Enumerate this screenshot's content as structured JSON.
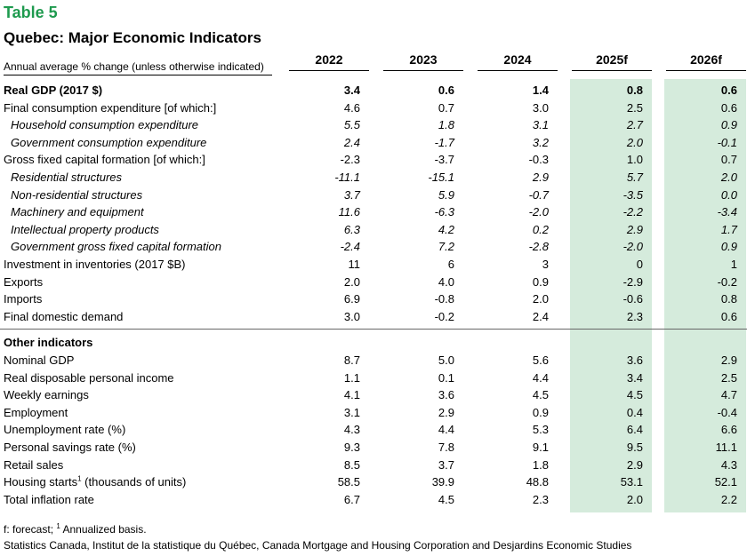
{
  "table_label": "Table 5",
  "title": "Quebec: Major Economic Indicators",
  "subheader": "Annual average % change (unless otherwise indicated)",
  "years": [
    "2022",
    "2023",
    "2024",
    "2025f",
    "2026f"
  ],
  "rows": [
    {
      "label": "Real GDP (2017 $)",
      "values": [
        "3.4",
        "0.6",
        "1.4",
        "0.8",
        "0.6"
      ],
      "style": "bold"
    },
    {
      "label": "Final consumption expenditure [of which:]",
      "values": [
        "4.6",
        "0.7",
        "3.0",
        "2.5",
        "0.6"
      ],
      "style": "normal"
    },
    {
      "label": "Household consumption expenditure",
      "values": [
        "5.5",
        "1.8",
        "3.1",
        "2.7",
        "0.9"
      ],
      "style": "indent"
    },
    {
      "label": "Government consumption expenditure",
      "values": [
        "2.4",
        "-1.7",
        "3.2",
        "2.0",
        "-0.1"
      ],
      "style": "indent"
    },
    {
      "label": "Gross fixed capital formation [of which:]",
      "values": [
        "-2.3",
        "-3.7",
        "-0.3",
        "1.0",
        "0.7"
      ],
      "style": "normal"
    },
    {
      "label": "Residential structures",
      "values": [
        "-11.1",
        "-15.1",
        "2.9",
        "5.7",
        "2.0"
      ],
      "style": "indent"
    },
    {
      "label": "Non-residential structures",
      "values": [
        "3.7",
        "5.9",
        "-0.7",
        "-3.5",
        "0.0"
      ],
      "style": "indent"
    },
    {
      "label": "Machinery and equipment",
      "values": [
        "11.6",
        "-6.3",
        "-2.0",
        "-2.2",
        "-3.4"
      ],
      "style": "indent"
    },
    {
      "label": "Intellectual property products",
      "values": [
        "6.3",
        "4.2",
        "0.2",
        "2.9",
        "1.7"
      ],
      "style": "indent"
    },
    {
      "label": "Government gross fixed capital formation",
      "values": [
        "-2.4",
        "7.2",
        "-2.8",
        "-2.0",
        "0.9"
      ],
      "style": "indent"
    },
    {
      "label": "Investment in inventories (2017 $B)",
      "values": [
        "11",
        "6",
        "3",
        "0",
        "1"
      ],
      "style": "normal"
    },
    {
      "label": "Exports",
      "values": [
        "2.0",
        "4.0",
        "0.9",
        "-2.9",
        "-0.2"
      ],
      "style": "normal"
    },
    {
      "label": "Imports",
      "values": [
        "6.9",
        "-0.8",
        "2.0",
        "-0.6",
        "0.8"
      ],
      "style": "normal"
    },
    {
      "label": "Final domestic demand",
      "values": [
        "3.0",
        "-0.2",
        "2.4",
        "2.3",
        "0.6"
      ],
      "style": "normal"
    }
  ],
  "other_header": "Other indicators",
  "other_rows": [
    {
      "label": "Nominal GDP",
      "values": [
        "8.7",
        "5.0",
        "5.6",
        "3.6",
        "2.9"
      ]
    },
    {
      "label": "Real disposable personal income",
      "values": [
        "1.1",
        "0.1",
        "4.4",
        "3.4",
        "2.5"
      ]
    },
    {
      "label": "Weekly earnings",
      "values": [
        "4.1",
        "3.6",
        "4.5",
        "4.5",
        "4.7"
      ]
    },
    {
      "label": "Employment",
      "values": [
        "3.1",
        "2.9",
        "0.9",
        "0.4",
        "-0.4"
      ]
    },
    {
      "label": "Unemployment rate (%)",
      "values": [
        "4.3",
        "4.4",
        "5.3",
        "6.4",
        "6.6"
      ]
    },
    {
      "label": "Personal savings rate (%)",
      "values": [
        "9.3",
        "7.8",
        "9.1",
        "9.5",
        "11.1"
      ]
    },
    {
      "label": "Retail sales",
      "values": [
        "8.5",
        "3.7",
        "1.8",
        "2.9",
        "4.3"
      ]
    },
    {
      "label": "Housing starts",
      "sup": "1",
      "label_suffix": " (thousands of units)",
      "values": [
        "58.5",
        "39.9",
        "48.8",
        "53.1",
        "52.1"
      ]
    },
    {
      "label": "Total inflation rate",
      "values": [
        "6.7",
        "4.5",
        "2.3",
        "2.0",
        "2.2"
      ]
    }
  ],
  "footnote_prefix": "f: forecast; ",
  "footnote_sup": "1",
  "footnote_text": " Annualized basis.",
  "source": "Statistics Canada, Institut de la statistique du Québec, Canada Mortgage and Housing Corporation and Desjardins Economic Studies"
}
